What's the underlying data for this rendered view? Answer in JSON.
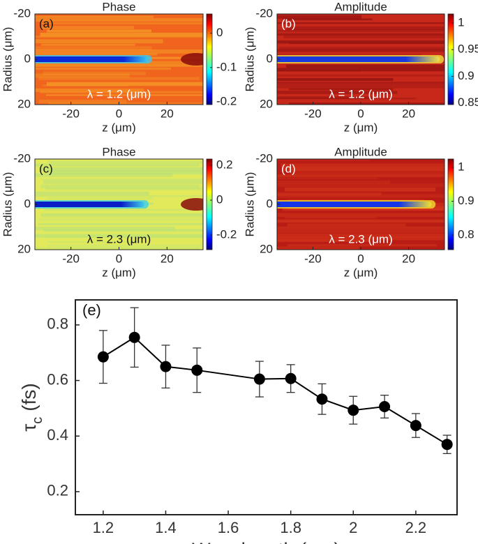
{
  "chart_data": [
    {
      "type": "heatmap",
      "title": "Phase",
      "panel_label": "(a)",
      "annotation": "λ = 1.2 (μm)",
      "x_label": "z (μm)",
      "y_label": "Radius (μm)",
      "xlim": [
        -35,
        35
      ],
      "xticks": [
        -20,
        0,
        20
      ],
      "ylim": [
        20,
        -20
      ],
      "yticks": [
        -20,
        0,
        20
      ],
      "colormap": "jet",
      "clim": [
        -0.208,
        0.056
      ],
      "cticks": [
        0,
        -0.1,
        -0.2
      ],
      "background_color": "#f0641e",
      "stripe_color": "#f6a326",
      "streak_color": "#0a2ad8",
      "edge_color": "#38c8f0"
    },
    {
      "type": "heatmap",
      "title": "Amplitude",
      "panel_label": "(b)",
      "annotation": "λ = 1.2 (μm)",
      "x_label": "z (μm)",
      "y_label": "Radius (μm)",
      "xlim": [
        -35,
        35
      ],
      "xticks": [
        -20,
        0,
        20
      ],
      "ylim": [
        20,
        -20
      ],
      "yticks": [
        -20,
        0,
        20
      ],
      "colormap": "jet",
      "clim": [
        0.847,
        1.017
      ],
      "cticks": [
        1,
        0.95,
        0.9,
        0.85
      ],
      "background_color": "#c8281a",
      "stripe_color": "#8a1010",
      "streak_color": "#1a3ae0",
      "edge_color": "#f0e040"
    },
    {
      "type": "heatmap",
      "title": "Phase",
      "panel_label": "(c)",
      "annotation": "λ = 2.3 (μm)",
      "x_label": "z (μm)",
      "y_label": "Radius (μm)",
      "xlim": [
        -35,
        35
      ],
      "xticks": [
        -20,
        0,
        20
      ],
      "ylim": [
        20,
        -20
      ],
      "yticks": [
        -20,
        0,
        20
      ],
      "colormap": "jet",
      "clim": [
        -0.284,
        0.236
      ],
      "cticks": [
        0.2,
        0,
        -0.2
      ],
      "background_color": "#e2ea5c",
      "stripe_color": "#b8e07a",
      "streak_color": "#0a1ec8",
      "edge_color": "#40d0e8"
    },
    {
      "type": "heatmap",
      "title": "Amplitude",
      "panel_label": "(d)",
      "annotation": "λ = 2.3 (μm)",
      "x_label": "z (μm)",
      "y_label": "Radius (μm)",
      "xlim": [
        -35,
        35
      ],
      "xticks": [
        -20,
        0,
        20
      ],
      "ylim": [
        20,
        -20
      ],
      "yticks": [
        -20,
        0,
        20
      ],
      "colormap": "jet",
      "clim": [
        0.757,
        1.025
      ],
      "cticks": [
        1,
        0.9,
        0.8
      ],
      "background_color": "#b81c14",
      "stripe_color": "#d83a1c",
      "streak_color": "#1436e8",
      "edge_color": "#f2e030"
    },
    {
      "type": "line",
      "panel_label": "(e)",
      "x_label": "Wavelength (μm)",
      "y_label": {
        "symbol": "τ",
        "subscript": "c",
        "unit": "(fs)"
      },
      "x": [
        1.2,
        1.3,
        1.4,
        1.5,
        1.7,
        1.8,
        1.9,
        2,
        2.1,
        2.2,
        2.3
      ],
      "values": [
        0.685,
        0.755,
        0.65,
        0.637,
        0.605,
        0.607,
        0.533,
        0.493,
        0.506,
        0.438,
        0.37
      ],
      "errors": [
        0.095,
        0.107,
        0.077,
        0.08,
        0.064,
        0.05,
        0.055,
        0.05,
        0.041,
        0.043,
        0.033
      ],
      "color": "#000000",
      "xlim": [
        1.111,
        2.332
      ],
      "xticks": [
        1.2,
        1.4,
        1.6,
        1.8,
        2,
        2.2
      ],
      "ylim": [
        0.117,
        0.89
      ],
      "yticks": [
        0.2,
        0.4,
        0.6,
        0.8
      ]
    }
  ]
}
